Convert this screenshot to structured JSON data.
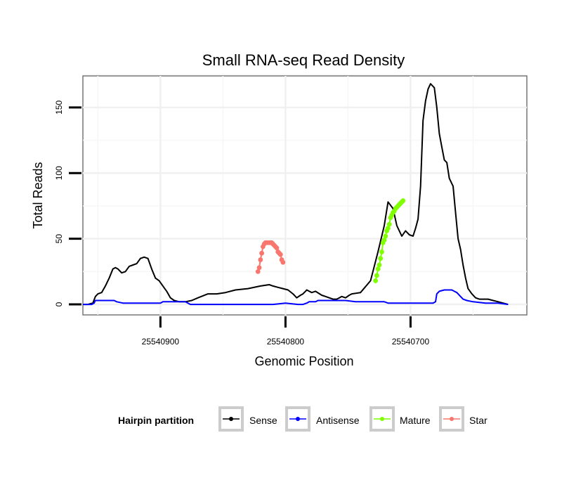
{
  "chart_data": {
    "type": "line",
    "title": "Small RNA-seq Read Density",
    "xlabel": "Genomic Position",
    "ylabel": "Total Reads",
    "xlim": [
      25540962,
      25540607
    ],
    "ylim": [
      -8,
      174
    ],
    "x_ticks": [
      25540900,
      25540800,
      25540700
    ],
    "x_tick_labels": [
      "25540900",
      "25540800",
      "25540700"
    ],
    "y_ticks": [
      0,
      50,
      100,
      150
    ],
    "y_tick_labels": [
      "0",
      "50",
      "100",
      "150"
    ],
    "grid": true,
    "legend_position": "bottom",
    "legend": {
      "title": "Hairpin partition",
      "entries": [
        "Sense",
        "Antisense",
        "Mature",
        "Star"
      ]
    },
    "series": [
      {
        "name": "Sense",
        "color": "#000000",
        "style": "line",
        "x": [
          25540962,
          25540958,
          25540954,
          25540952,
          25540950,
          25540947,
          25540944,
          25540941,
          25540938,
          25540936,
          25540934,
          25540931,
          25540928,
          25540925,
          25540922,
          25540919,
          25540916,
          25540913,
          25540910,
          25540907,
          25540904,
          25540901,
          25540898,
          25540895,
          25540892,
          25540889,
          25540885,
          25540880,
          25540875,
          25540870,
          25540862,
          25540855,
          25540848,
          25540840,
          25540830,
          25540820,
          25540813,
          25540810,
          25540806,
          25540802,
          25540798,
          25540794,
          25540791,
          25540788,
          25540786,
          25540785,
          25540784,
          25540783,
          25540781,
          25540779,
          25540776,
          25540771,
          25540768,
          25540765,
          25540762,
          25540759,
          25540757,
          25540755,
          25540752,
          25540749,
          25540747,
          25540740,
          25540732,
          25540726,
          25540721,
          25540718,
          25540714,
          25540711,
          25540707,
          25540704,
          25540701,
          25540698,
          25540696,
          25540694,
          25540692,
          25540690,
          25540688,
          25540686,
          25540684,
          25540683,
          25540682,
          25540681,
          25540679,
          25540677,
          25540675,
          25540673,
          25540671,
          25540669,
          25540666,
          25540664,
          25540662,
          25540660,
          25540658,
          25540656,
          25540654,
          25540651,
          25540648,
          25540645,
          25540642,
          25540638,
          25540634,
          25540630,
          25540626,
          25540622
        ],
        "y": [
          0,
          0,
          1,
          6,
          8,
          9,
          14,
          20,
          27,
          28,
          27,
          24,
          25,
          29,
          30,
          31,
          35,
          36,
          35,
          27,
          20,
          18,
          14,
          10,
          5,
          3,
          2,
          2,
          3,
          5,
          8,
          8,
          9,
          11,
          12,
          14,
          15,
          14,
          13,
          12,
          11,
          8,
          5,
          7,
          8,
          9,
          10,
          11,
          10,
          9,
          10,
          7,
          6,
          5,
          4,
          4,
          5,
          6,
          5,
          7,
          8,
          9,
          18,
          40,
          60,
          78,
          73,
          60,
          52,
          56,
          53,
          52,
          58,
          65,
          90,
          140,
          155,
          164,
          168,
          167,
          166,
          165,
          150,
          130,
          120,
          110,
          108,
          96,
          90,
          70,
          50,
          42,
          30,
          20,
          12,
          8,
          5,
          4,
          4,
          4,
          3,
          2,
          1,
          0
        ]
      },
      {
        "name": "Antisense",
        "color": "#0000ff",
        "style": "line",
        "x": [
          25540962,
          25540955,
          25540953,
          25540952,
          25540950,
          25540948,
          25540937,
          25540935,
          25540930,
          25540920,
          25540915,
          25540900,
          25540898,
          25540890,
          25540880,
          25540878,
          25540876,
          25540870,
          25540860,
          25540850,
          25540840,
          25540830,
          25540820,
          25540810,
          25540800,
          25540790,
          25540786,
          25540783,
          25540781,
          25540779,
          25540776,
          25540774,
          25540769,
          25540760,
          25540752,
          25540744,
          25540740,
          25540730,
          25540721,
          25540718,
          25540712,
          25540700,
          25540690,
          25540682,
          25540680,
          25540679,
          25540677,
          25540673,
          25540667,
          25540665,
          25540663,
          25540660,
          25540658,
          25540655,
          25540650,
          25540640,
          25540630,
          25540622
        ],
        "y": [
          0,
          0,
          1,
          3,
          3,
          3,
          3,
          2,
          1,
          1,
          1,
          1,
          2,
          2,
          2,
          1,
          0,
          0,
          0,
          0,
          0,
          0,
          0,
          0,
          1,
          0,
          0,
          1,
          2,
          2,
          2,
          3,
          3,
          3,
          3,
          2,
          2,
          2,
          2,
          1,
          1,
          1,
          1,
          1,
          2,
          8,
          10,
          11,
          11,
          10,
          9,
          6,
          4,
          3,
          2,
          1,
          1,
          0
        ]
      },
      {
        "name": "Mature",
        "color": "#7fff00",
        "style": "points-line",
        "x": [
          25540728,
          25540727,
          25540726,
          25540725,
          25540724,
          25540723,
          25540722,
          25540721,
          25540720,
          25540719,
          25540718,
          25540717,
          25540716,
          25540715,
          25540714,
          25540713,
          25540712,
          25540711,
          25540710,
          25540709,
          25540708,
          25540707,
          25540706
        ],
        "y": [
          18,
          22,
          27,
          30,
          35,
          40,
          47,
          49,
          52,
          56,
          58,
          61,
          66,
          68,
          70,
          71,
          73,
          74,
          75,
          76,
          77,
          78,
          79
        ]
      },
      {
        "name": "Star",
        "color": "#f8766d",
        "style": "points-line",
        "x": [
          25540822,
          25540821,
          25540820,
          25540819,
          25540818,
          25540817,
          25540816,
          25540815,
          25540814,
          25540813,
          25540812,
          25540811,
          25540810,
          25540809,
          25540808,
          25540807,
          25540806,
          25540805,
          25540804,
          25540803,
          25540802
        ],
        "y": [
          25,
          28,
          34,
          39,
          44,
          46,
          47,
          47,
          47,
          47,
          47,
          47,
          46,
          45,
          44,
          43,
          40,
          39,
          38,
          34,
          32
        ]
      }
    ]
  }
}
